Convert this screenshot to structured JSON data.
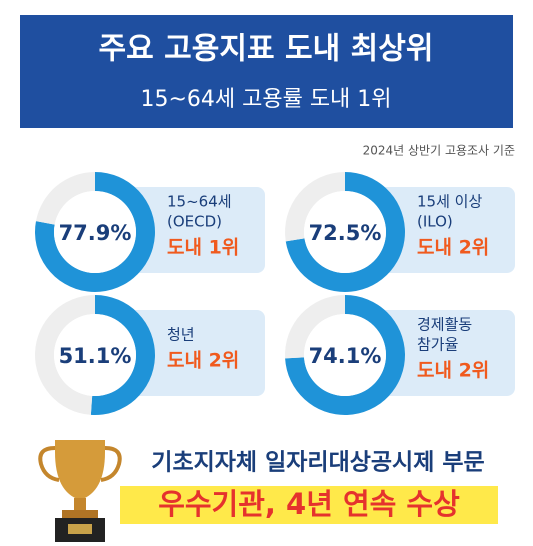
{
  "header": {
    "title": "주요 고용지표 도내 최상위",
    "subtitle": "15~64세 고용률 도내 1위",
    "source": "2024년 상반기 고용조사 기준"
  },
  "chart_data": [
    {
      "type": "donut",
      "values": [
        77.9,
        22.1
      ],
      "value_labels": [
        "77.9%",
        null
      ],
      "colors": [
        "#1f93d8",
        "#eeeeee"
      ],
      "label": [
        "15~64세",
        "(OECD)"
      ],
      "rank": "도내 1위"
    },
    {
      "type": "donut",
      "values": [
        72.5,
        27.5
      ],
      "value_labels": [
        "72.5%",
        null
      ],
      "colors": [
        "#1f93d8",
        "#eeeeee"
      ],
      "label": [
        "15세 이상",
        "(ILO)"
      ],
      "rank": "도내 2위"
    },
    {
      "type": "donut",
      "values": [
        51.1,
        48.9
      ],
      "value_labels": [
        "51.1%",
        null
      ],
      "colors": [
        "#1f93d8",
        "#eeeeee"
      ],
      "label": [
        "청년"
      ],
      "rank": "도내 2위"
    },
    {
      "type": "donut",
      "values": [
        74.1,
        25.9
      ],
      "value_labels": [
        "74.1%",
        null
      ],
      "colors": [
        "#1f93d8",
        "#eeeeee"
      ],
      "label": [
        "경제활동",
        "참가율"
      ],
      "rank": "도내 2위"
    }
  ],
  "footer": {
    "line1": "기초지자체 일자리대상공시제 부문",
    "line2": "우수기관, 4년 연속 수상"
  }
}
